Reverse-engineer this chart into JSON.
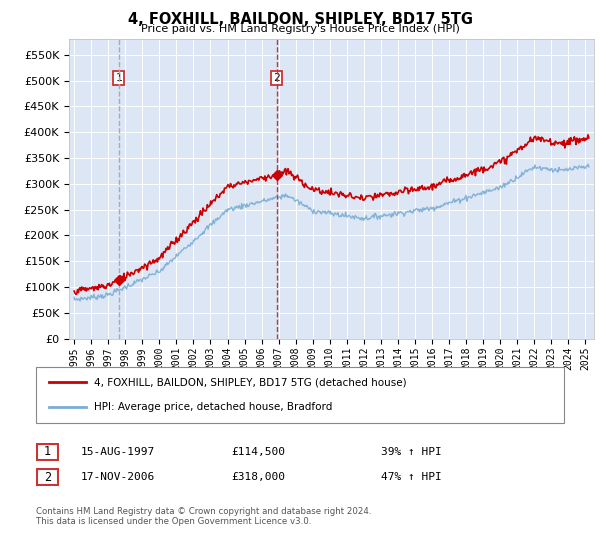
{
  "title": "4, FOXHILL, BAILDON, SHIPLEY, BD17 5TG",
  "subtitle": "Price paid vs. HM Land Registry's House Price Index (HPI)",
  "red_line_label": "4, FOXHILL, BAILDON, SHIPLEY, BD17 5TG (detached house)",
  "blue_line_label": "HPI: Average price, detached house, Bradford",
  "transaction1_date": "15-AUG-1997",
  "transaction1_price": "£114,500",
  "transaction1_hpi": "39% ↑ HPI",
  "transaction2_date": "17-NOV-2006",
  "transaction2_price": "£318,000",
  "transaction2_hpi": "47% ↑ HPI",
  "footnote": "Contains HM Land Registry data © Crown copyright and database right 2024.\nThis data is licensed under the Open Government Licence v3.0.",
  "ylim": [
    0,
    580000
  ],
  "yticks": [
    0,
    50000,
    100000,
    150000,
    200000,
    250000,
    300000,
    350000,
    400000,
    450000,
    500000,
    550000
  ],
  "background_color": "#dce6f5",
  "red_color": "#cc0000",
  "blue_color": "#7aadd4",
  "vline1_color": "#aaaaaa",
  "vline2_color": "#cc3333",
  "marker_color": "#cc0000",
  "transaction1_year": 1997.62,
  "transaction2_year": 2006.88,
  "transaction1_value": 114500,
  "transaction2_value": 318000,
  "xlim_min": 1994.7,
  "xlim_max": 2025.5
}
